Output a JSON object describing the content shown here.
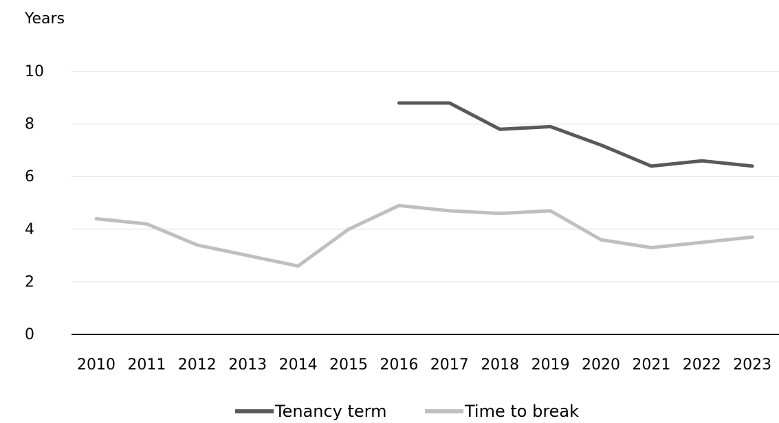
{
  "chart_data": {
    "type": "line",
    "ylabel": "Years",
    "x": [
      "2010",
      "2011",
      "2012",
      "2013",
      "2014",
      "2015",
      "2016",
      "2017",
      "2018",
      "2019",
      "2020",
      "2021",
      "2022",
      "2023"
    ],
    "yticks": [
      "0",
      "2",
      "4",
      "6",
      "8",
      "10"
    ],
    "ylim": [
      0,
      10
    ],
    "grid": true,
    "legend_position": "bottom",
    "series": [
      {
        "name": "Tenancy term",
        "color": "#595959",
        "values": [
          null,
          null,
          null,
          null,
          null,
          null,
          8.8,
          8.8,
          7.8,
          7.9,
          7.2,
          6.4,
          6.6,
          6.4
        ]
      },
      {
        "name": "Time to break",
        "color": "#bfbfbf",
        "values": [
          4.4,
          4.2,
          3.4,
          3.0,
          2.6,
          4.0,
          4.9,
          4.7,
          4.6,
          4.7,
          3.6,
          3.3,
          3.5,
          3.7
        ]
      }
    ]
  }
}
